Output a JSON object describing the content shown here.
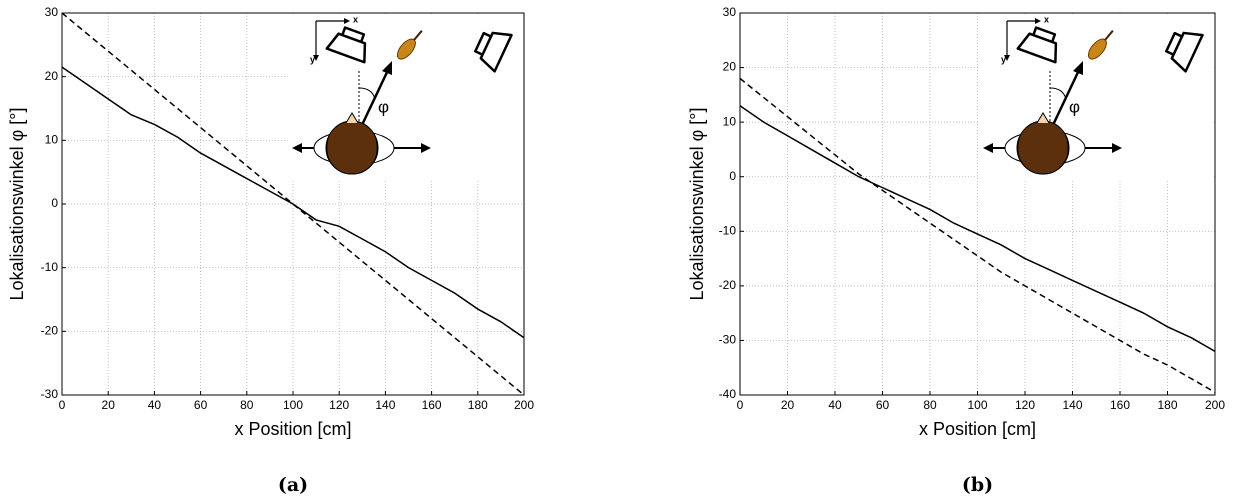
{
  "chart_data": [
    {
      "type": "line",
      "xlabel": "x Position [cm]",
      "ylabel": "Lokalisationswinkel φ [°]",
      "caption": "(a)",
      "x": [
        0,
        10,
        20,
        30,
        40,
        50,
        60,
        70,
        80,
        90,
        100,
        110,
        120,
        130,
        140,
        150,
        160,
        170,
        180,
        190,
        200
      ],
      "series": [
        {
          "color": "#000000",
          "dash": "solid",
          "values": [
            21.5,
            19,
            16.5,
            14,
            12.5,
            10.5,
            8,
            6,
            4,
            2,
            0,
            -2.5,
            -3.5,
            -5.5,
            -7.5,
            -10,
            -12,
            -14,
            -16.5,
            -18.5,
            -21
          ]
        },
        {
          "color": "#000000",
          "dash": "dashed",
          "values": [
            30,
            27,
            24,
            21,
            18,
            15,
            12,
            9,
            6,
            3,
            0,
            -3,
            -6,
            -9,
            -12,
            -15,
            -18,
            -21,
            -24,
            -27,
            -30
          ]
        }
      ],
      "xlim": [
        0,
        200
      ],
      "xticks": [
        0,
        20,
        40,
        60,
        80,
        100,
        120,
        140,
        160,
        180,
        200
      ],
      "ylim": [
        -30,
        30
      ],
      "yticks": [
        -30,
        -20,
        -10,
        0,
        10,
        20,
        30
      ],
      "grid": true,
      "inset_labels": [
        "x",
        "y",
        "φ"
      ]
    },
    {
      "type": "line",
      "xlabel": "x Position [cm]",
      "ylabel": "Lokalisationswinkel φ [°]",
      "caption": "(b)",
      "x": [
        0,
        10,
        20,
        30,
        40,
        50,
        60,
        70,
        80,
        90,
        100,
        110,
        120,
        130,
        140,
        150,
        160,
        170,
        180,
        190,
        200
      ],
      "series": [
        {
          "color": "#000000",
          "dash": "solid",
          "values": [
            13,
            10,
            7.5,
            5,
            2.5,
            0,
            -2,
            -4,
            -6,
            -8.5,
            -10.5,
            -12.5,
            -15,
            -17,
            -19,
            -21,
            -23,
            -25,
            -27.5,
            -29.5,
            -32
          ]
        },
        {
          "color": "#000000",
          "dash": "dashed",
          "values": [
            18,
            14.5,
            11,
            7.5,
            4,
            0.5,
            -2.5,
            -5.5,
            -8.5,
            -11.5,
            -14.5,
            -17.5,
            -20,
            -22.5,
            -25,
            -27.5,
            -30,
            -32.5,
            -34.5,
            -37,
            -39.5
          ]
        }
      ],
      "xlim": [
        0,
        200
      ],
      "xticks": [
        0,
        20,
        40,
        60,
        80,
        100,
        120,
        140,
        160,
        180,
        200
      ],
      "ylim": [
        -40,
        30
      ],
      "yticks": [
        -40,
        -30,
        -20,
        -10,
        0,
        10,
        20,
        30
      ],
      "grid": true,
      "inset_labels": [
        "x",
        "y",
        "φ"
      ]
    }
  ]
}
